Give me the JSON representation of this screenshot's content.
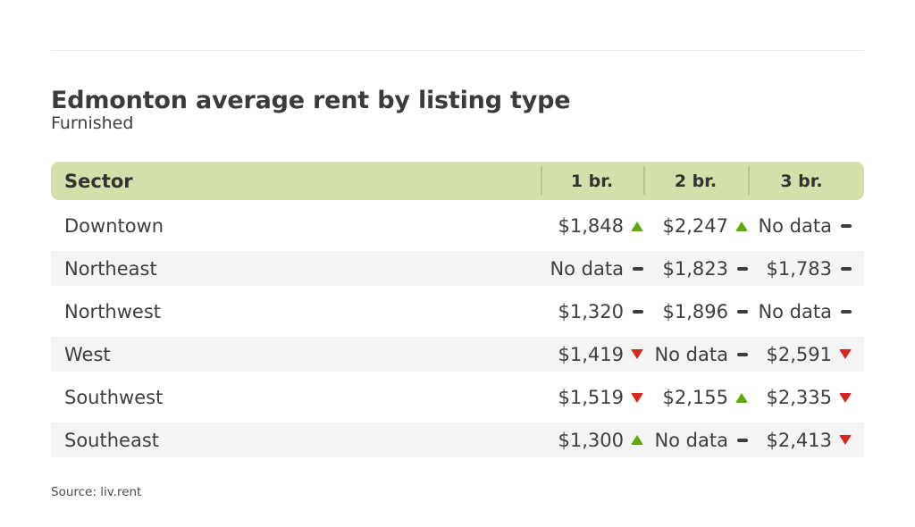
{
  "header": {
    "title": "Edmonton average rent by listing type",
    "subtitle": "Furnished"
  },
  "table": {
    "columns": [
      "Sector",
      "1 br.",
      "2 br.",
      "3 br."
    ],
    "rows": [
      {
        "sector": "Downtown",
        "cells": [
          {
            "value": "$1,848",
            "trend": "up"
          },
          {
            "value": "$2,247",
            "trend": "up"
          },
          {
            "value": "No data",
            "trend": "flat"
          }
        ]
      },
      {
        "sector": "Northeast",
        "cells": [
          {
            "value": "No data",
            "trend": "flat"
          },
          {
            "value": "$1,823",
            "trend": "flat"
          },
          {
            "value": "$1,783",
            "trend": "flat"
          }
        ]
      },
      {
        "sector": "Northwest",
        "cells": [
          {
            "value": "$1,320",
            "trend": "flat"
          },
          {
            "value": "$1,896",
            "trend": "flat"
          },
          {
            "value": "No data",
            "trend": "flat"
          }
        ]
      },
      {
        "sector": "West",
        "cells": [
          {
            "value": "$1,419",
            "trend": "down"
          },
          {
            "value": "No data",
            "trend": "flat"
          },
          {
            "value": "$2,591",
            "trend": "down"
          }
        ]
      },
      {
        "sector": "Southwest",
        "cells": [
          {
            "value": "$1,519",
            "trend": "down"
          },
          {
            "value": "$2,155",
            "trend": "up"
          },
          {
            "value": "$2,335",
            "trend": "down"
          }
        ]
      },
      {
        "sector": "Southeast",
        "cells": [
          {
            "value": "$1,300",
            "trend": "up"
          },
          {
            "value": "No data",
            "trend": "flat"
          },
          {
            "value": "$2,413",
            "trend": "down"
          }
        ]
      }
    ]
  },
  "source": {
    "label": "Source: liv.rent"
  },
  "colors": {
    "header_bg": "#d3e0a9",
    "divider": "#b5c493",
    "stripe": "#f4f4f4",
    "up": "#5fa80f",
    "down": "#d6281e",
    "flat": "#3d3d3d"
  },
  "chart_data": {
    "type": "table",
    "title": "Edmonton average rent by listing type",
    "subtitle": "Furnished",
    "columns": [
      "Sector",
      "1 br.",
      "2 br.",
      "3 br."
    ],
    "rows": [
      [
        "Downtown",
        "$1,848 (up)",
        "$2,247 (up)",
        "No data (flat)"
      ],
      [
        "Northeast",
        "No data (flat)",
        "$1,823 (flat)",
        "$1,783 (flat)"
      ],
      [
        "Northwest",
        "$1,320 (flat)",
        "$1,896 (flat)",
        "No data (flat)"
      ],
      [
        "West",
        "$1,419 (down)",
        "No data (flat)",
        "$2,591 (down)"
      ],
      [
        "Southwest",
        "$1,519 (down)",
        "$2,155 (up)",
        "$2,335 (down)"
      ],
      [
        "Southeast",
        "$1,300 (up)",
        "No data (flat)",
        "$2,413 (down)"
      ]
    ],
    "values_numeric": {
      "1 br.": [
        1848,
        null,
        1320,
        1419,
        1519,
        1300
      ],
      "2 br.": [
        2247,
        1823,
        1896,
        null,
        2155,
        null
      ],
      "3 br.": [
        null,
        1783,
        null,
        2591,
        2335,
        2413
      ]
    },
    "legend": "triangle up = rent increased (green), triangle down = rent decreased (red), dash = no change / no data",
    "source": "Source: liv.rent"
  }
}
